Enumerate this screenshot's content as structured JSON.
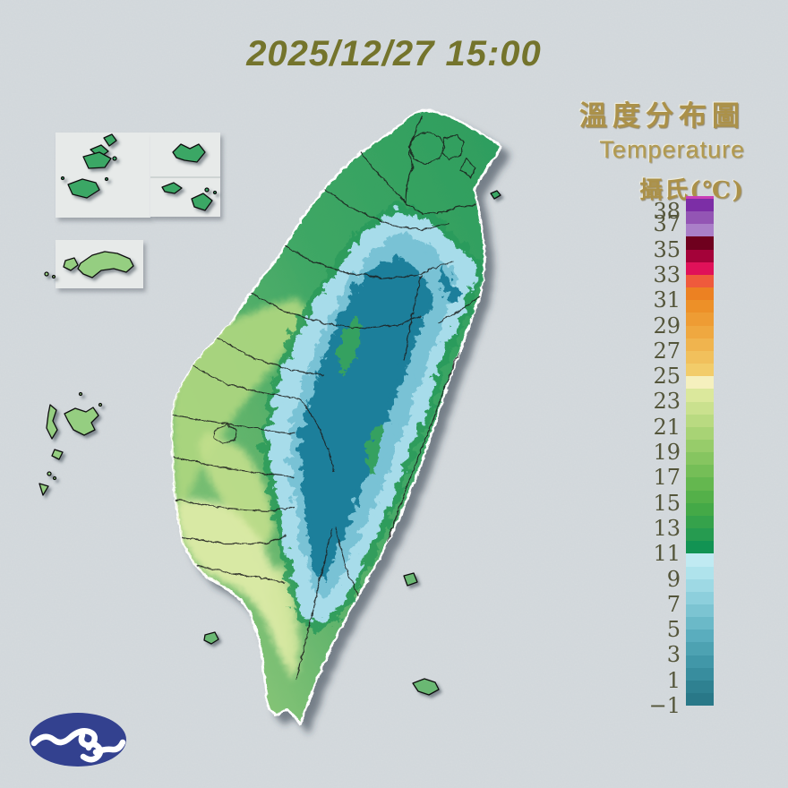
{
  "header": {
    "datetime": "2025/12/27 15:00"
  },
  "panel": {
    "title_zh": "溫度分布圖",
    "title_en": "Temperature",
    "unit_label": "攝氏(℃)"
  },
  "legend": {
    "scale": {
      "max": 39,
      "min": -1,
      "unit": "°C",
      "degrees_per_segment": 1
    },
    "tick_labels": [
      {
        "label": "38",
        "value": 38
      },
      {
        "label": "37",
        "value": 37
      },
      {
        "label": "35",
        "value": 35
      },
      {
        "label": "33",
        "value": 33
      },
      {
        "label": "31",
        "value": 31
      },
      {
        "label": "29",
        "value": 29
      },
      {
        "label": "27",
        "value": 27
      },
      {
        "label": "25",
        "value": 25
      },
      {
        "label": "23",
        "value": 23
      },
      {
        "label": "21",
        "value": 21
      },
      {
        "label": "19",
        "value": 19
      },
      {
        "label": "17",
        "value": 17
      },
      {
        "label": "15",
        "value": 15
      },
      {
        "label": "13",
        "value": 13
      },
      {
        "label": "11",
        "value": 11
      },
      {
        "label": "9",
        "value": 9
      },
      {
        "label": "7",
        "value": 7
      },
      {
        "label": "5",
        "value": 5
      },
      {
        "label": "3",
        "value": 3
      },
      {
        "label": "1",
        "value": 1
      },
      {
        "label": "−1",
        "value": -1
      }
    ],
    "top_cap_color": "#c93fb6",
    "segments": [
      {
        "range": "38–39",
        "color": "#7c2ea6"
      },
      {
        "range": "37–38",
        "color": "#9355b4"
      },
      {
        "range": "36–37",
        "color": "#aa7fc8"
      },
      {
        "range": "35–36",
        "color": "#6f001e"
      },
      {
        "range": "34–35",
        "color": "#a40239"
      },
      {
        "range": "33–34",
        "color": "#e01159"
      },
      {
        "range": "32–33",
        "color": "#ef5a3c"
      },
      {
        "range": "31–32",
        "color": "#ec8122"
      },
      {
        "range": "30–31",
        "color": "#ed9028"
      },
      {
        "range": "29–30",
        "color": "#ee9c34"
      },
      {
        "range": "28–29",
        "color": "#efa840"
      },
      {
        "range": "27–28",
        "color": "#f0b44e"
      },
      {
        "range": "26–27",
        "color": "#f1c05c"
      },
      {
        "range": "25–26",
        "color": "#f2cc6a"
      },
      {
        "range": "24–25",
        "color": "#f5f0be"
      },
      {
        "range": "23–24",
        "color": "#dbe89c"
      },
      {
        "range": "22–23",
        "color": "#cae18e"
      },
      {
        "range": "21–22",
        "color": "#b9da81"
      },
      {
        "range": "20–21",
        "color": "#a8d375"
      },
      {
        "range": "19–20",
        "color": "#97cc6a"
      },
      {
        "range": "18–19",
        "color": "#86c560"
      },
      {
        "range": "17–18",
        "color": "#75be57"
      },
      {
        "range": "16–17",
        "color": "#64b74f"
      },
      {
        "range": "15–16",
        "color": "#54b049"
      },
      {
        "range": "14–15",
        "color": "#44a947"
      },
      {
        "range": "13–14",
        "color": "#35a24b"
      },
      {
        "range": "12–13",
        "color": "#269b50"
      },
      {
        "range": "11–12",
        "color": "#129353"
      },
      {
        "range": "10–11",
        "color": "#c0eaf2"
      },
      {
        "range": "9–10",
        "color": "#afe3ec"
      },
      {
        "range": "8–9",
        "color": "#9ed9e4"
      },
      {
        "range": "7–8",
        "color": "#8dcfdc"
      },
      {
        "range": "6–7",
        "color": "#7cc4d2"
      },
      {
        "range": "5–6",
        "color": "#6bb9c8"
      },
      {
        "range": "4–5",
        "color": "#5aadbe"
      },
      {
        "range": "3–4",
        "color": "#4da2b2"
      },
      {
        "range": "2–3",
        "color": "#4197a8"
      },
      {
        "range": "1–2",
        "color": "#388d9e"
      },
      {
        "range": "0–1",
        "color": "#2f8191"
      },
      {
        "range": "−1–0",
        "color": "#297888"
      }
    ]
  },
  "colors": {
    "background": "#d5dade",
    "inset_box": "#e7eae9",
    "island_green": "#3fa765",
    "island_green_dark": "#2b9b5b",
    "plains_light_green": "#abd57e",
    "plains_mid_green": "#c2df8c",
    "plains_pale_yellow": "#ddeba6",
    "mountain_cyan_light": "#a7dcea",
    "mountain_cyan_mid": "#79c2d5",
    "mountain_teal_dark": "#1f7f9b",
    "offshore_island_green": "#3aa765",
    "offshore_island_light": "#95ce81",
    "datetime_text": "#74742c",
    "gold_text": "#ab9149",
    "legend_text": "#54553a",
    "logo_blue": "#33418f"
  }
}
